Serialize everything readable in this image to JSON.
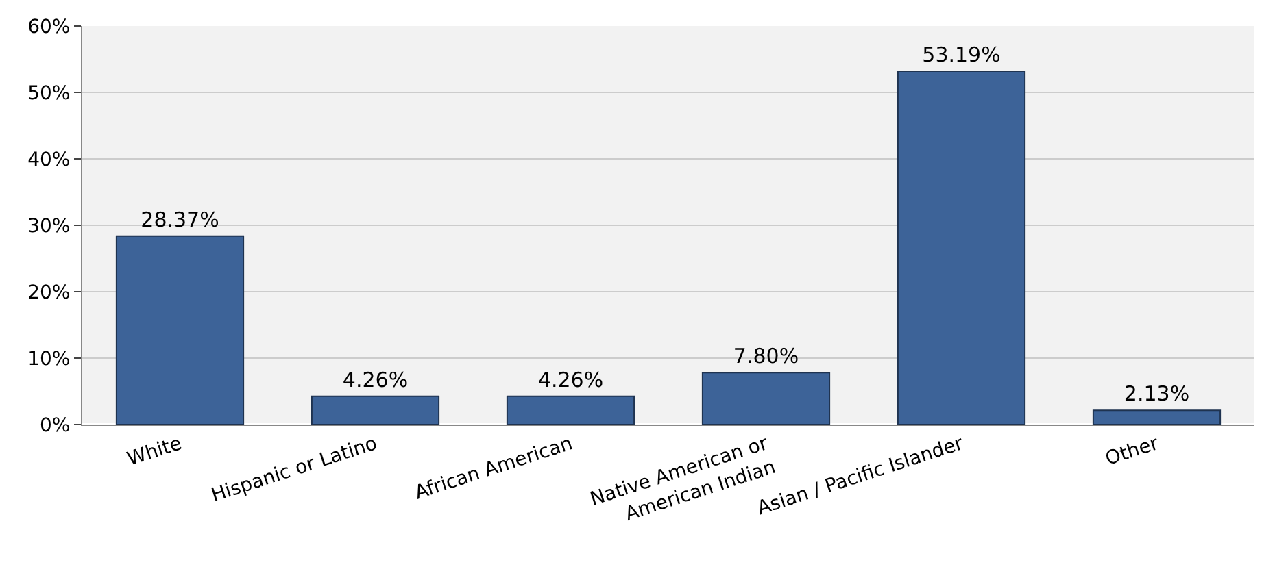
{
  "chart_data": {
    "type": "bar",
    "categories": [
      "White",
      "Hispanic or Latino",
      "African American",
      "Native American or\nAmerican Indian",
      "Asian / Pacific Islander",
      "Other"
    ],
    "values": [
      28.37,
      4.26,
      4.26,
      7.8,
      53.19,
      2.13
    ],
    "value_labels": [
      "28.37%",
      "4.26%",
      "4.26%",
      "7.80%",
      "53.19%",
      "2.13%"
    ],
    "color": "#3d6398",
    "ylim": [
      0,
      60
    ],
    "yticks": [
      {
        "value": 0,
        "label": "0%"
      },
      {
        "value": 10,
        "label": "10%"
      },
      {
        "value": 20,
        "label": "20%"
      },
      {
        "value": 30,
        "label": "30%"
      },
      {
        "value": 40,
        "label": "40%"
      },
      {
        "value": 50,
        "label": "50%"
      },
      {
        "value": 60,
        "label": "60%"
      }
    ],
    "grid": "y"
  }
}
